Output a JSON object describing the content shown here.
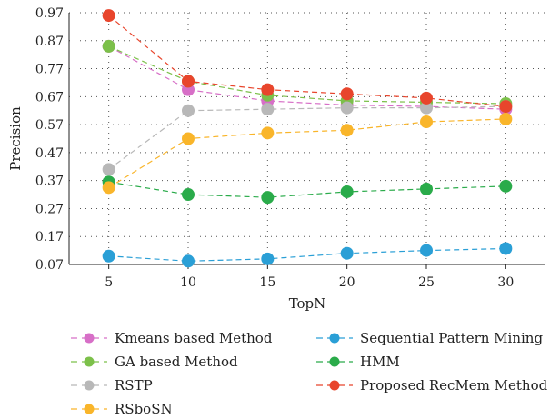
{
  "chart_data": {
    "type": "line",
    "xlabel": "TopN",
    "ylabel": "Precision",
    "x": [
      5,
      10,
      15,
      20,
      25,
      30
    ],
    "y_ticks": [
      "0.07",
      "0.17",
      "0.27",
      "0.37",
      "0.47",
      "0.57",
      "0.67",
      "0.77",
      "0.87",
      "0.97"
    ],
    "ylim": [
      0.07,
      0.97
    ],
    "grid": "dotted",
    "legend_position": "bottom",
    "series": [
      {
        "name": "Kmeans based Method",
        "color": "#d76fc7",
        "values": [
          0.85,
          0.695,
          0.655,
          0.64,
          0.635,
          0.625
        ]
      },
      {
        "name": "Sequential Pattern Mining",
        "color": "#2a9fd6",
        "values": [
          0.1,
          0.082,
          0.09,
          0.11,
          0.12,
          0.127
        ]
      },
      {
        "name": "GA based Method",
        "color": "#7cc04a",
        "values": [
          0.85,
          0.725,
          0.675,
          0.655,
          0.65,
          0.645
        ]
      },
      {
        "name": "HMM",
        "color": "#2aab4a",
        "values": [
          0.365,
          0.32,
          0.31,
          0.33,
          0.34,
          0.35
        ]
      },
      {
        "name": "RSTP",
        "color": "#b8b8b8",
        "values": [
          0.41,
          0.62,
          0.625,
          0.63,
          0.63,
          0.635
        ]
      },
      {
        "name": "Proposed RecMem Method",
        "color": "#e8452c",
        "values": [
          0.96,
          0.725,
          0.695,
          0.68,
          0.665,
          0.635
        ]
      },
      {
        "name": "RSboSN",
        "color": "#f9b52a",
        "values": [
          0.345,
          0.52,
          0.54,
          0.55,
          0.58,
          0.59
        ]
      }
    ]
  }
}
